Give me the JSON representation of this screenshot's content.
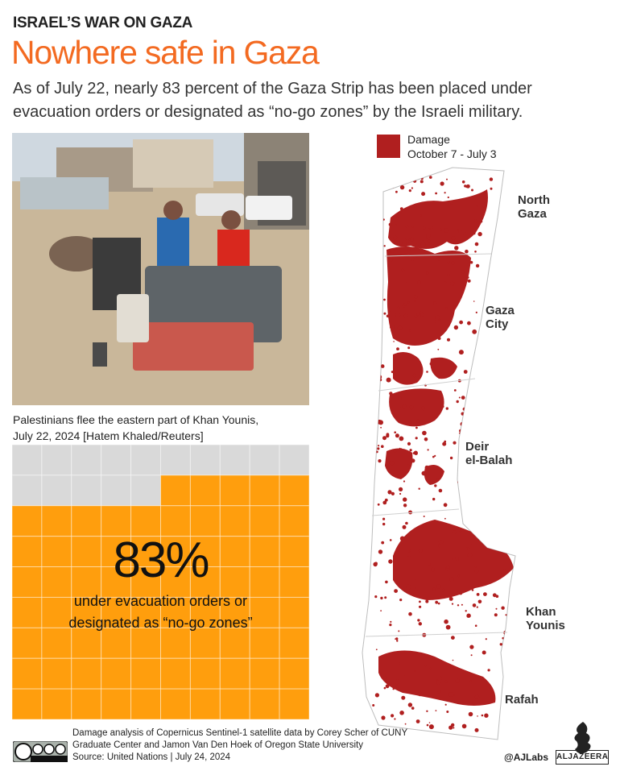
{
  "header": {
    "kicker": "ISRAEL’S WAR ON GAZA",
    "headline": "Nowhere safe in Gaza",
    "standfirst": "As of July 22, nearly 83 percent of the Gaza Strip has been placed under evacuation orders or designated as “no-go zones” by the Israeli military."
  },
  "photo": {
    "caption_line1": "Palestinians flee the eastern part of Khan Younis,",
    "caption_line2": "July 22, 2024 [Hatem Khaled/Reuters]"
  },
  "stat": {
    "percent_value": 83,
    "value_text": "83%",
    "label_line1": "under evacuation orders or",
    "label_line2": "designated as “no-go zones”",
    "grid_columns": 10,
    "grid_rows": 9,
    "filled_color": "#ff9e0d",
    "empty_color": "#d9d9d9"
  },
  "map": {
    "legend_title": "Damage",
    "legend_period": "October 7 - July 3",
    "damage_color": "#b01f1f",
    "places": {
      "north_gaza_1": "North",
      "north_gaza_2": "Gaza",
      "gaza_city_1": "Gaza",
      "gaza_city_2": "City",
      "deir_1": "Deir",
      "deir_2": "el-Balah",
      "khan_1": "Khan",
      "khan_2": "Younis",
      "rafah": "Rafah"
    }
  },
  "footer": {
    "credit_line1": "Damage analysis of Copernicus Sentinel-1 satellite data by Corey Scher of CUNY",
    "credit_line2": "Graduate Center and Jamon Van Den Hoek of Oregon State University",
    "source_line": "Source:  United Nations      |      July 24, 2024",
    "handle": "@AJLabs",
    "brand": "ALJAZEERA"
  },
  "accent_color": "#f36a21"
}
